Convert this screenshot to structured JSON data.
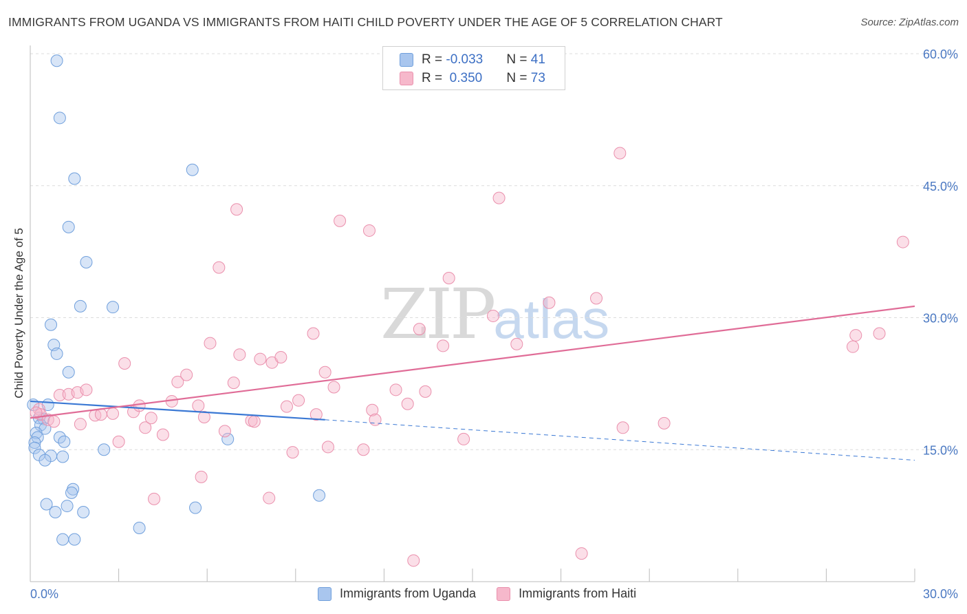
{
  "title": "IMMIGRANTS FROM UGANDA VS IMMIGRANTS FROM HAITI CHILD POVERTY UNDER THE AGE OF 5 CORRELATION CHART",
  "source": "Source: ZipAtlas.com",
  "watermark": {
    "zip": "ZIP",
    "atlas": "atlas"
  },
  "legend": {
    "rows": [
      {
        "r_label": "R = ",
        "r_value": "-0.033",
        "n_label": "N = ",
        "n_value": "41",
        "color": "#a9c6ee"
      },
      {
        "r_label": "R = ",
        "r_value": " 0.350",
        "n_label": "N = ",
        "n_value": "73",
        "color": "#f6b8cb"
      }
    ]
  },
  "bottom_legend": [
    {
      "label": "Immigrants from Uganda",
      "color": "#a9c6ee"
    },
    {
      "label": "Immigrants from Haiti",
      "color": "#f6b8cb"
    }
  ],
  "chart_data": {
    "type": "scatter",
    "title": "IMMIGRANTS FROM UGANDA VS IMMIGRANTS FROM HAITI CHILD POVERTY UNDER THE AGE OF 5 CORRELATION CHART",
    "xlabel": "",
    "ylabel": "Child Poverty Under the Age of 5",
    "xlim": [
      0,
      30
    ],
    "ylim": [
      0,
      60
    ],
    "x_tick_labels": [
      "0.0%",
      "30.0%"
    ],
    "y_ticks": [
      15,
      30,
      45,
      60
    ],
    "y_tick_labels": [
      "15.0%",
      "30.0%",
      "45.0%",
      "60.0%"
    ],
    "grid": true,
    "series": [
      {
        "name": "Immigrants from Uganda",
        "color": "#a9c6ee",
        "stroke": "#6f9fdc",
        "points": [
          [
            0.9,
            59.2
          ],
          [
            1.0,
            52.7
          ],
          [
            1.5,
            45.8
          ],
          [
            5.5,
            46.8
          ],
          [
            1.3,
            40.3
          ],
          [
            1.9,
            36.3
          ],
          [
            1.7,
            31.3
          ],
          [
            2.8,
            31.2
          ],
          [
            0.7,
            29.2
          ],
          [
            0.8,
            26.9
          ],
          [
            0.9,
            25.9
          ],
          [
            1.3,
            23.8
          ],
          [
            0.1,
            20.1
          ],
          [
            0.6,
            20.1
          ],
          [
            0.3,
            18.6
          ],
          [
            0.45,
            18.5
          ],
          [
            0.35,
            17.8
          ],
          [
            0.5,
            17.4
          ],
          [
            0.2,
            16.9
          ],
          [
            0.25,
            16.4
          ],
          [
            1.0,
            16.4
          ],
          [
            1.15,
            15.9
          ],
          [
            6.7,
            16.2
          ],
          [
            0.15,
            15.8
          ],
          [
            0.15,
            15.2
          ],
          [
            0.3,
            14.4
          ],
          [
            0.7,
            14.3
          ],
          [
            1.1,
            14.2
          ],
          [
            0.5,
            13.8
          ],
          [
            2.5,
            15.0
          ],
          [
            1.45,
            10.5
          ],
          [
            1.4,
            10.1
          ],
          [
            0.55,
            8.8
          ],
          [
            1.25,
            8.6
          ],
          [
            0.85,
            7.9
          ],
          [
            1.8,
            7.9
          ],
          [
            3.7,
            6.1
          ],
          [
            5.6,
            8.4
          ],
          [
            9.8,
            9.8
          ],
          [
            1.1,
            4.8
          ],
          [
            1.5,
            4.8
          ]
        ]
      },
      {
        "name": "Immigrants from Haiti",
        "color": "#f6b8cb",
        "stroke": "#ea8fac",
        "points": [
          [
            0.3,
            19.6
          ],
          [
            0.35,
            19.0
          ],
          [
            0.6,
            18.4
          ],
          [
            0.8,
            18.2
          ],
          [
            1.0,
            21.2
          ],
          [
            1.3,
            21.3
          ],
          [
            1.6,
            21.5
          ],
          [
            1.9,
            21.8
          ],
          [
            1.7,
            17.9
          ],
          [
            2.2,
            18.9
          ],
          [
            2.4,
            19.0
          ],
          [
            2.8,
            19.1
          ],
          [
            3.0,
            15.9
          ],
          [
            3.2,
            24.8
          ],
          [
            3.5,
            19.3
          ],
          [
            3.7,
            20.0
          ],
          [
            3.9,
            17.5
          ],
          [
            4.1,
            18.6
          ],
          [
            4.2,
            9.4
          ],
          [
            4.5,
            16.7
          ],
          [
            4.8,
            20.5
          ],
          [
            5.0,
            22.7
          ],
          [
            5.3,
            23.5
          ],
          [
            5.7,
            20.0
          ],
          [
            5.8,
            11.9
          ],
          [
            5.9,
            18.7
          ],
          [
            6.1,
            27.1
          ],
          [
            6.4,
            35.7
          ],
          [
            6.6,
            17.1
          ],
          [
            6.9,
            22.6
          ],
          [
            7.0,
            42.3
          ],
          [
            7.1,
            25.8
          ],
          [
            7.5,
            18.3
          ],
          [
            7.6,
            18.2
          ],
          [
            7.8,
            25.3
          ],
          [
            8.1,
            9.5
          ],
          [
            8.2,
            24.9
          ],
          [
            8.5,
            25.5
          ],
          [
            8.7,
            19.9
          ],
          [
            8.9,
            14.7
          ],
          [
            9.1,
            20.6
          ],
          [
            9.6,
            28.2
          ],
          [
            9.7,
            19.0
          ],
          [
            10.0,
            23.8
          ],
          [
            10.1,
            15.3
          ],
          [
            10.3,
            22.1
          ],
          [
            10.5,
            41.0
          ],
          [
            11.3,
            15.0
          ],
          [
            11.6,
            19.5
          ],
          [
            11.7,
            18.4
          ],
          [
            11.5,
            39.9
          ],
          [
            12.4,
            21.8
          ],
          [
            12.8,
            20.2
          ],
          [
            13.0,
            2.4
          ],
          [
            13.2,
            28.7
          ],
          [
            13.4,
            21.6
          ],
          [
            14.0,
            26.8
          ],
          [
            14.2,
            34.5
          ],
          [
            14.7,
            16.2
          ],
          [
            15.7,
            30.2
          ],
          [
            15.9,
            43.6
          ],
          [
            16.5,
            27.0
          ],
          [
            17.6,
            31.7
          ],
          [
            18.7,
            3.2
          ],
          [
            19.2,
            32.2
          ],
          [
            20.0,
            48.7
          ],
          [
            20.1,
            17.5
          ],
          [
            21.5,
            18.0
          ],
          [
            27.9,
            26.7
          ],
          [
            28.0,
            28.0
          ],
          [
            28.8,
            28.2
          ],
          [
            29.6,
            38.6
          ],
          [
            0.2,
            19.2
          ]
        ]
      }
    ],
    "trend_lines": [
      {
        "series": "Immigrants from Uganda",
        "color": "#3a78d4",
        "solid": [
          [
            0,
            20.5
          ],
          [
            10,
            18.4
          ]
        ],
        "dashed": [
          [
            10,
            18.4
          ],
          [
            30,
            13.8
          ]
        ]
      },
      {
        "series": "Immigrants from Haiti",
        "color": "#e06c97",
        "solid": [
          [
            0,
            18.6
          ],
          [
            30,
            31.3
          ]
        ]
      }
    ]
  }
}
